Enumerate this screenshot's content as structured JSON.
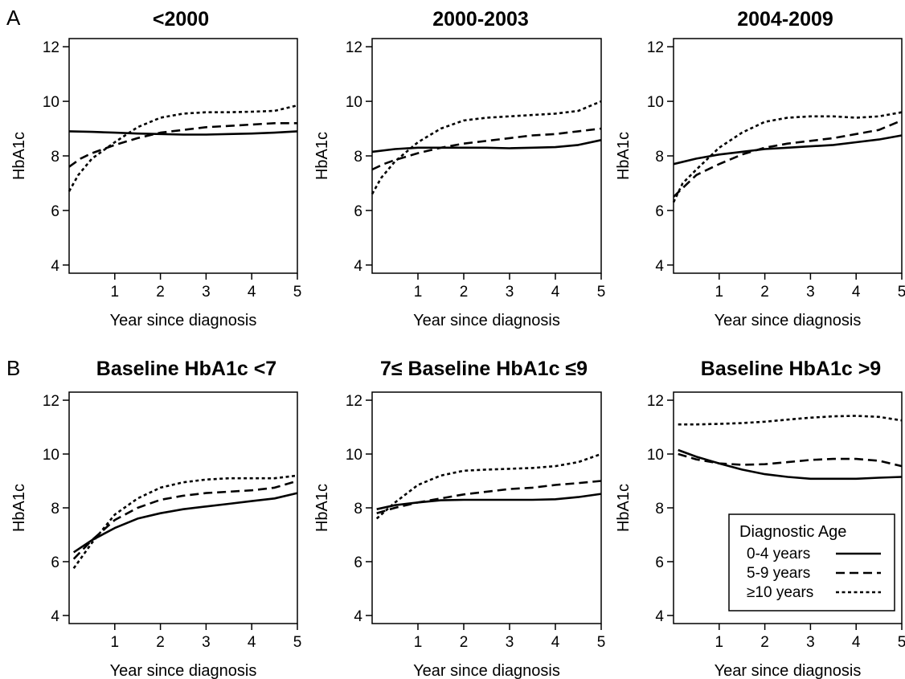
{
  "panel_letters": [
    "A",
    "B"
  ],
  "legend": {
    "title": "Diagnostic Age",
    "entries": [
      "0-4 years",
      "5-9 years",
      "≥10 years"
    ]
  },
  "chart_data": [
    {
      "type": "line",
      "title": "<2000",
      "xlabel": "Year since diagnosis",
      "ylabel": "HbA1c",
      "xlim": [
        0,
        5
      ],
      "ylim": [
        3.7,
        12.3
      ],
      "xticks": [
        1,
        2,
        3,
        4,
        5
      ],
      "yticks": [
        4,
        6,
        8,
        10,
        12
      ],
      "series": [
        {
          "name": "0-4 years",
          "x": [
            0,
            0.5,
            1,
            1.5,
            2,
            2.5,
            3,
            3.5,
            4,
            4.5,
            5
          ],
          "y": [
            8.9,
            8.88,
            8.85,
            8.82,
            8.8,
            8.78,
            8.78,
            8.8,
            8.82,
            8.85,
            8.9
          ]
        },
        {
          "name": "5-9 years",
          "x": [
            0,
            0.25,
            0.5,
            1,
            1.5,
            2,
            2.5,
            3,
            3.5,
            4,
            4.5,
            5
          ],
          "y": [
            7.6,
            7.9,
            8.1,
            8.4,
            8.65,
            8.85,
            8.95,
            9.05,
            9.1,
            9.15,
            9.2,
            9.2
          ]
        },
        {
          "name": "≥10 years",
          "x": [
            0,
            0.2,
            0.5,
            1,
            1.5,
            2,
            2.5,
            3,
            3.5,
            4,
            4.5,
            5
          ],
          "y": [
            6.7,
            7.3,
            7.9,
            8.5,
            9.05,
            9.4,
            9.55,
            9.6,
            9.6,
            9.62,
            9.65,
            9.85
          ]
        }
      ]
    },
    {
      "type": "line",
      "title": "2000-2003",
      "xlabel": "Year since diagnosis",
      "ylabel": "HbA1c",
      "xlim": [
        0,
        5
      ],
      "ylim": [
        3.7,
        12.3
      ],
      "xticks": [
        1,
        2,
        3,
        4,
        5
      ],
      "yticks": [
        4,
        6,
        8,
        10,
        12
      ],
      "series": [
        {
          "name": "0-4 years",
          "x": [
            0,
            0.5,
            1,
            1.5,
            2,
            2.5,
            3,
            3.5,
            4,
            4.5,
            5
          ],
          "y": [
            8.15,
            8.25,
            8.3,
            8.3,
            8.3,
            8.3,
            8.28,
            8.3,
            8.32,
            8.4,
            8.58
          ]
        },
        {
          "name": "5-9 years",
          "x": [
            0,
            0.25,
            0.5,
            1,
            1.5,
            2,
            2.5,
            3,
            3.5,
            4,
            4.5,
            5
          ],
          "y": [
            7.5,
            7.7,
            7.85,
            8.1,
            8.3,
            8.45,
            8.55,
            8.65,
            8.75,
            8.8,
            8.9,
            9.0
          ]
        },
        {
          "name": "≥10 years",
          "x": [
            0,
            0.2,
            0.5,
            1,
            1.5,
            2,
            2.5,
            3,
            3.5,
            4,
            4.5,
            5
          ],
          "y": [
            6.6,
            7.2,
            7.8,
            8.5,
            9.0,
            9.3,
            9.4,
            9.45,
            9.5,
            9.55,
            9.65,
            10.0
          ]
        }
      ]
    },
    {
      "type": "line",
      "title": "2004-2009",
      "xlabel": "Year since diagnosis",
      "ylabel": "HbA1c",
      "xlim": [
        0,
        5
      ],
      "ylim": [
        3.7,
        12.3
      ],
      "xticks": [
        1,
        2,
        3,
        4,
        5
      ],
      "yticks": [
        4,
        6,
        8,
        10,
        12
      ],
      "series": [
        {
          "name": "0-4 years",
          "x": [
            0,
            0.5,
            1,
            1.5,
            2,
            2.5,
            3,
            3.5,
            4,
            4.5,
            5
          ],
          "y": [
            7.7,
            7.9,
            8.05,
            8.15,
            8.25,
            8.3,
            8.35,
            8.4,
            8.5,
            8.6,
            8.75
          ]
        },
        {
          "name": "5-9 years",
          "x": [
            0,
            0.25,
            0.5,
            1,
            1.5,
            2,
            2.5,
            3,
            3.5,
            4,
            4.5,
            5
          ],
          "y": [
            6.5,
            6.9,
            7.3,
            7.7,
            8.05,
            8.3,
            8.45,
            8.55,
            8.65,
            8.8,
            8.95,
            9.3
          ]
        },
        {
          "name": "≥10 years",
          "x": [
            0,
            0.2,
            0.5,
            1,
            1.5,
            2,
            2.5,
            3,
            3.5,
            4,
            4.5,
            5
          ],
          "y": [
            6.3,
            7.0,
            7.5,
            8.3,
            8.85,
            9.25,
            9.4,
            9.45,
            9.45,
            9.4,
            9.45,
            9.6
          ]
        }
      ]
    },
    {
      "type": "line",
      "title": "Baseline HbA1c <7",
      "xlabel": "Year since diagnosis",
      "ylabel": "HbA1c",
      "xlim": [
        0,
        5
      ],
      "ylim": [
        3.7,
        12.3
      ],
      "xticks": [
        1,
        2,
        3,
        4,
        5
      ],
      "yticks": [
        4,
        6,
        8,
        10,
        12
      ],
      "series": [
        {
          "name": "0-4 years",
          "x": [
            0.1,
            0.5,
            1,
            1.5,
            2,
            2.5,
            3,
            3.5,
            4,
            4.5,
            5
          ],
          "y": [
            6.35,
            6.8,
            7.25,
            7.6,
            7.8,
            7.95,
            8.05,
            8.15,
            8.25,
            8.35,
            8.55
          ]
        },
        {
          "name": "5-9 years",
          "x": [
            0.1,
            0.5,
            1,
            1.5,
            2,
            2.5,
            3,
            3.5,
            4,
            4.5,
            5
          ],
          "y": [
            6.1,
            6.8,
            7.55,
            8.0,
            8.3,
            8.45,
            8.55,
            8.6,
            8.65,
            8.75,
            9.0
          ]
        },
        {
          "name": "≥10 years",
          "x": [
            0.1,
            0.5,
            1,
            1.5,
            2,
            2.5,
            3,
            3.5,
            4,
            4.5,
            5
          ],
          "y": [
            5.75,
            6.7,
            7.75,
            8.35,
            8.75,
            8.95,
            9.05,
            9.1,
            9.1,
            9.1,
            9.2
          ]
        }
      ]
    },
    {
      "type": "line",
      "title": "7≤ Baseline HbA1c ≤9",
      "xlabel": "Year since diagnosis",
      "ylabel": "HbA1c",
      "xlim": [
        0,
        5
      ],
      "ylim": [
        3.7,
        12.3
      ],
      "xticks": [
        1,
        2,
        3,
        4,
        5
      ],
      "yticks": [
        4,
        6,
        8,
        10,
        12
      ],
      "series": [
        {
          "name": "0-4 years",
          "x": [
            0.1,
            0.5,
            1,
            1.5,
            2,
            2.5,
            3,
            3.5,
            4,
            4.5,
            5
          ],
          "y": [
            7.95,
            8.1,
            8.2,
            8.28,
            8.3,
            8.3,
            8.3,
            8.3,
            8.32,
            8.4,
            8.52
          ]
        },
        {
          "name": "5-9 years",
          "x": [
            0.1,
            0.5,
            1,
            1.5,
            2,
            2.5,
            3,
            3.5,
            4,
            4.5,
            5
          ],
          "y": [
            7.8,
            8.0,
            8.2,
            8.35,
            8.5,
            8.6,
            8.7,
            8.75,
            8.85,
            8.92,
            9.0
          ]
        },
        {
          "name": "≥10 years",
          "x": [
            0.1,
            0.5,
            1,
            1.5,
            2,
            2.5,
            3,
            3.5,
            4,
            4.5,
            5
          ],
          "y": [
            7.6,
            8.2,
            8.85,
            9.2,
            9.38,
            9.42,
            9.45,
            9.48,
            9.55,
            9.7,
            10.0
          ]
        }
      ]
    },
    {
      "type": "line",
      "title": "Baseline HbA1c >9",
      "xlabel": "Year since diagnosis",
      "ylabel": "HbA1c",
      "xlim": [
        0,
        5
      ],
      "ylim": [
        3.7,
        12.3
      ],
      "xticks": [
        1,
        2,
        3,
        4,
        5
      ],
      "yticks": [
        4,
        6,
        8,
        10,
        12
      ],
      "series": [
        {
          "name": "0-4 years",
          "x": [
            0.1,
            0.5,
            1,
            1.5,
            2,
            2.5,
            3,
            3.5,
            4,
            4.5,
            5
          ],
          "y": [
            10.15,
            9.9,
            9.65,
            9.42,
            9.25,
            9.15,
            9.08,
            9.08,
            9.08,
            9.12,
            9.15
          ]
        },
        {
          "name": "5-9 years",
          "x": [
            0.1,
            0.5,
            1,
            1.5,
            2,
            2.5,
            3,
            3.5,
            4,
            4.5,
            5
          ],
          "y": [
            10.0,
            9.8,
            9.65,
            9.6,
            9.62,
            9.7,
            9.78,
            9.82,
            9.82,
            9.75,
            9.55
          ]
        },
        {
          "name": "≥10 years",
          "x": [
            0.1,
            0.5,
            1,
            1.5,
            2,
            2.5,
            3,
            3.5,
            4,
            4.5,
            5
          ],
          "y": [
            11.1,
            11.1,
            11.12,
            11.15,
            11.2,
            11.28,
            11.35,
            11.4,
            11.42,
            11.38,
            11.25
          ]
        }
      ]
    }
  ]
}
